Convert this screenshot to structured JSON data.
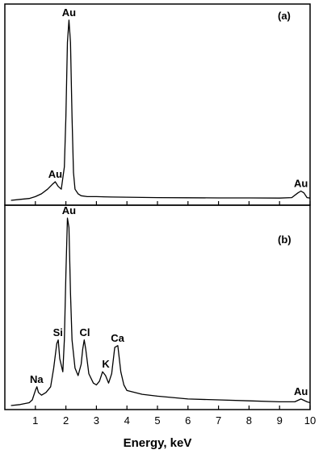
{
  "chart_data": {
    "type": "line",
    "xlabel": "Energy, keV",
    "xlim": [
      0,
      10
    ],
    "x_ticks": [
      "1",
      "2",
      "3",
      "4",
      "5",
      "6",
      "7",
      "8",
      "9",
      "10"
    ],
    "panels": [
      {
        "panel_label": "(a)",
        "ylim": [
          0,
          100
        ],
        "series": [
          {
            "x": [
              0.2,
              0.5,
              0.8,
              1.0,
              1.2,
              1.4,
              1.55,
              1.65,
              1.75,
              1.85,
              1.95,
              2.0,
              2.05,
              2.1,
              2.15,
              2.2,
              2.25,
              2.3,
              2.4,
              2.5,
              2.7,
              3.0,
              3.5,
              4.0,
              5.0,
              6.0,
              7.0,
              8.0,
              9.0,
              9.4,
              9.6,
              9.7,
              9.8,
              9.9,
              10.0
            ],
            "y": [
              0,
              0.5,
              1.0,
              2.0,
              3.5,
              6.0,
              8.5,
              10.0,
              7.5,
              6.0,
              18.0,
              45.0,
              85.0,
              97.0,
              85.0,
              45.0,
              15.0,
              6.0,
              3.5,
              2.5,
              2.0,
              2.0,
              1.8,
              1.7,
              1.5,
              1.4,
              1.3,
              1.3,
              1.2,
              1.5,
              4.0,
              5.0,
              4.0,
              1.5,
              1.2
            ]
          }
        ],
        "annotations": [
          {
            "text": "Au",
            "x": 2.1,
            "y": 97
          },
          {
            "text": "Au",
            "x": 1.65,
            "y": 10
          },
          {
            "text": "Au",
            "x": 9.7,
            "y": 5
          }
        ]
      },
      {
        "panel_label": "(b)",
        "ylim": [
          0,
          100
        ],
        "series": [
          {
            "x": [
              0.2,
              0.5,
              0.8,
              0.9,
              1.0,
              1.05,
              1.1,
              1.2,
              1.35,
              1.5,
              1.6,
              1.7,
              1.75,
              1.8,
              1.9,
              1.95,
              2.0,
              2.05,
              2.1,
              2.15,
              2.2,
              2.3,
              2.4,
              2.5,
              2.55,
              2.6,
              2.65,
              2.75,
              2.9,
              3.0,
              3.1,
              3.2,
              3.3,
              3.4,
              3.5,
              3.6,
              3.7,
              3.8,
              3.9,
              4.0,
              4.5,
              5.0,
              6.0,
              7.0,
              8.0,
              9.0,
              9.5,
              9.7,
              9.9,
              10.0
            ],
            "y": [
              0,
              0.5,
              1.5,
              3.0,
              8.0,
              10.0,
              7.0,
              5.5,
              7.0,
              10.0,
              20.0,
              33.0,
              35.0,
              25.0,
              18.0,
              35.0,
              70.0,
              100.0,
              95.0,
              60.0,
              35.0,
              20.0,
              16.0,
              22.0,
              30.0,
              35.0,
              30.0,
              17.0,
              12.0,
              11.0,
              13.0,
              18.0,
              16.0,
              12.0,
              17.0,
              31.0,
              32.0,
              18.0,
              11.0,
              8.0,
              6.0,
              5.0,
              3.5,
              3.0,
              2.5,
              2.0,
              2.0,
              3.5,
              2.0,
              1.5
            ]
          }
        ],
        "annotations": [
          {
            "text": "Au",
            "x": 2.1,
            "y": 100
          },
          {
            "text": "Si",
            "x": 1.74,
            "y": 35
          },
          {
            "text": "Cl",
            "x": 2.62,
            "y": 35
          },
          {
            "text": "Ca",
            "x": 3.69,
            "y": 32
          },
          {
            "text": "K",
            "x": 3.31,
            "y": 18
          },
          {
            "text": "Na",
            "x": 1.04,
            "y": 10
          },
          {
            "text": "Au",
            "x": 9.7,
            "y": 3.5
          }
        ]
      }
    ]
  }
}
